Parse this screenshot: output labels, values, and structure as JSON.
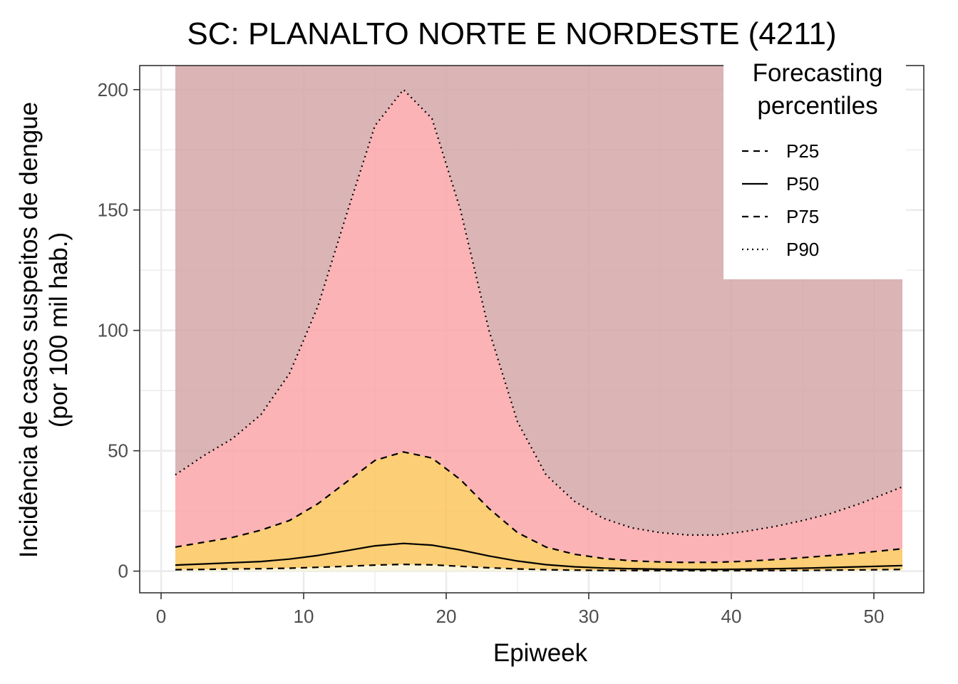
{
  "chart_data": {
    "type": "area",
    "title": "SC: PLANALTO NORTE E NORDESTE (4211)",
    "xlabel": "Epiweek",
    "ylabel_line1": "Incidência de casos suspeitos de dengue",
    "ylabel_line2": "(por 100 mil hab.)",
    "xlim": [
      -1.5,
      53.5
    ],
    "ylim": [
      -9,
      210
    ],
    "x_ticks": [
      0,
      10,
      20,
      30,
      40,
      50
    ],
    "y_ticks": [
      0,
      50,
      100,
      150,
      200
    ],
    "x": [
      1,
      3,
      5,
      7,
      9,
      11,
      13,
      15,
      17,
      19,
      21,
      23,
      25,
      27,
      29,
      31,
      33,
      35,
      37,
      39,
      41,
      43,
      45,
      47,
      49,
      52
    ],
    "series": [
      {
        "name": "P25",
        "dash": "dashed",
        "values": [
          0.6,
          0.7,
          0.9,
          1.0,
          1.2,
          1.6,
          2.0,
          2.5,
          2.8,
          2.6,
          2.0,
          1.4,
          0.9,
          0.6,
          0.4,
          0.3,
          0.25,
          0.2,
          0.2,
          0.2,
          0.2,
          0.25,
          0.3,
          0.4,
          0.5,
          0.7
        ]
      },
      {
        "name": "P50",
        "dash": "solid",
        "values": [
          2.5,
          3.0,
          3.5,
          4.0,
          5.0,
          6.5,
          8.5,
          10.5,
          11.5,
          10.8,
          8.8,
          6.3,
          4.2,
          2.7,
          1.8,
          1.3,
          1.0,
          0.8,
          0.7,
          0.7,
          0.8,
          1.0,
          1.2,
          1.5,
          1.8,
          2.3
        ]
      },
      {
        "name": "P75",
        "dash": "dashed",
        "values": [
          10,
          12,
          14,
          17,
          21,
          28,
          37,
          46,
          49.5,
          47,
          38,
          26,
          16,
          10,
          7,
          5.3,
          4.3,
          3.8,
          3.6,
          3.7,
          4.1,
          4.8,
          5.6,
          6.5,
          7.5,
          9.3
        ]
      },
      {
        "name": "P90",
        "dash": "dotted",
        "values": [
          40,
          48,
          55,
          65,
          82,
          110,
          148,
          185,
          200,
          188,
          150,
          100,
          62,
          40,
          29,
          22,
          18,
          16,
          15,
          15,
          16.5,
          18.5,
          21,
          24,
          28,
          35
        ]
      }
    ],
    "bands": [
      {
        "from": "P90",
        "to": "top",
        "color": "#d4a5a6"
      },
      {
        "from": "P75",
        "to": "P90",
        "color": "#fca4a6"
      },
      {
        "from": "P50",
        "to": "P75",
        "color": "#fcc45a"
      },
      {
        "from": "P25",
        "to": "P50",
        "color": "#fcc45a"
      },
      {
        "from": "bottom",
        "to": "P25",
        "color": "#f9f5d6"
      }
    ],
    "grid": true,
    "legend": {
      "title_line1": "Forecasting",
      "title_line2": "percentiles",
      "position": "top-right",
      "entries": [
        "P25",
        "P50",
        "P75",
        "P90"
      ]
    }
  }
}
